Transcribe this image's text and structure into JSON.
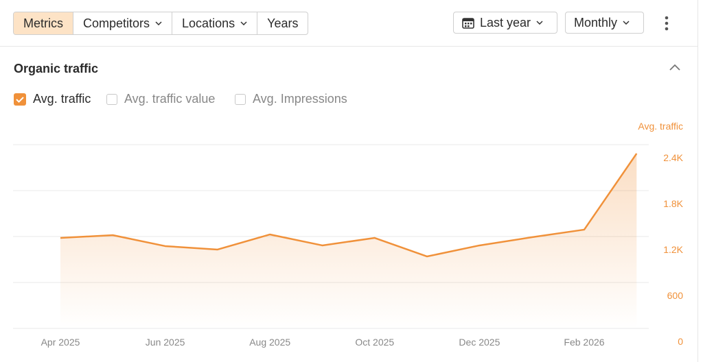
{
  "toolbar": {
    "tabs": [
      "Metrics",
      "Competitors",
      "Locations",
      "Years"
    ],
    "period": "Last year",
    "interval": "Monthly"
  },
  "section_title": "Organic traffic",
  "toggles": [
    "Avg. traffic value",
    "Avg. Impressions"
  ],
  "chart_data": {
    "type": "area",
    "y_label": "Avg. traffic",
    "categories": [
      "Apr 2025",
      null,
      "Jun 2025",
      null,
      "Aug 2025",
      null,
      "Oct 2025",
      null,
      "Dec 2025",
      null,
      "Feb 2026",
      null
    ],
    "series": [
      {
        "name": "Avg. traffic",
        "color": "#f0913a",
        "values": [
          1182,
          1218,
          1075,
          1030,
          1227,
          1084,
          1182,
          940,
          1084,
          1191,
          1290,
          2284
        ]
      }
    ],
    "ylim": [
      0,
      2400
    ],
    "yticks": [
      0,
      600,
      {
        "value": 1200,
        "label": "1.2K"
      },
      {
        "value": 1800,
        "label": "1.8K"
      },
      {
        "value": 2400,
        "label": "2.4K"
      }
    ],
    "grid": true
  }
}
